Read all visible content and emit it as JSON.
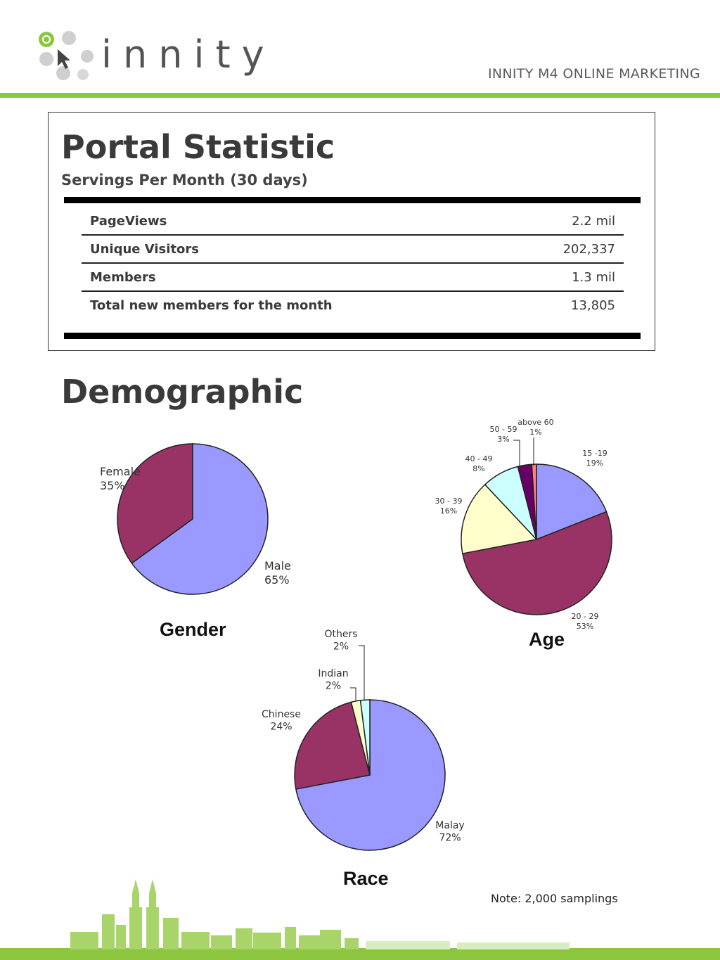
{
  "header": {
    "logo_text": "innity",
    "tagline": "INNITY M4 ONLINE MARKETING"
  },
  "portal_statistic": {
    "title": "Portal Statistic",
    "subtitle": "Servings Per Month (30 days)",
    "rows": [
      {
        "label": "PageViews",
        "value": "2.2 mil"
      },
      {
        "label": "Unique Visitors",
        "value": "202,337"
      },
      {
        "label": "Members",
        "value": "1.3 mil"
      },
      {
        "label": "Total new members for the month",
        "value": "13,805"
      }
    ]
  },
  "demographic": {
    "title": "Demographic",
    "note": "Note: 2,000 samplings"
  },
  "chart_data": [
    {
      "type": "pie",
      "title": "Gender",
      "categories": [
        "Female",
        "Male"
      ],
      "values": [
        35,
        65
      ],
      "labels": [
        "35%",
        "65%"
      ],
      "colors": [
        "#993366",
        "#9999ff"
      ]
    },
    {
      "type": "pie",
      "title": "Age",
      "categories": [
        "15 -19",
        "20 - 29",
        "30 - 39",
        "40 - 49",
        "50 - 59",
        "above 60"
      ],
      "values": [
        19,
        53,
        16,
        8,
        3,
        1
      ],
      "labels": [
        "19%",
        "53%",
        "16%",
        "8%",
        "3%",
        "1%"
      ],
      "colors": [
        "#9999ff",
        "#993366",
        "#ffffcc",
        "#ccffff",
        "#660066",
        "#ff8080"
      ]
    },
    {
      "type": "pie",
      "title": "Race",
      "categories": [
        "Malay",
        "Chinese",
        "Indian",
        "Others"
      ],
      "values": [
        72,
        24,
        2,
        2
      ],
      "labels": [
        "72%",
        "24%",
        "2%",
        "2%"
      ],
      "colors": [
        "#9999ff",
        "#993366",
        "#ffffcc",
        "#ccffff"
      ]
    }
  ]
}
